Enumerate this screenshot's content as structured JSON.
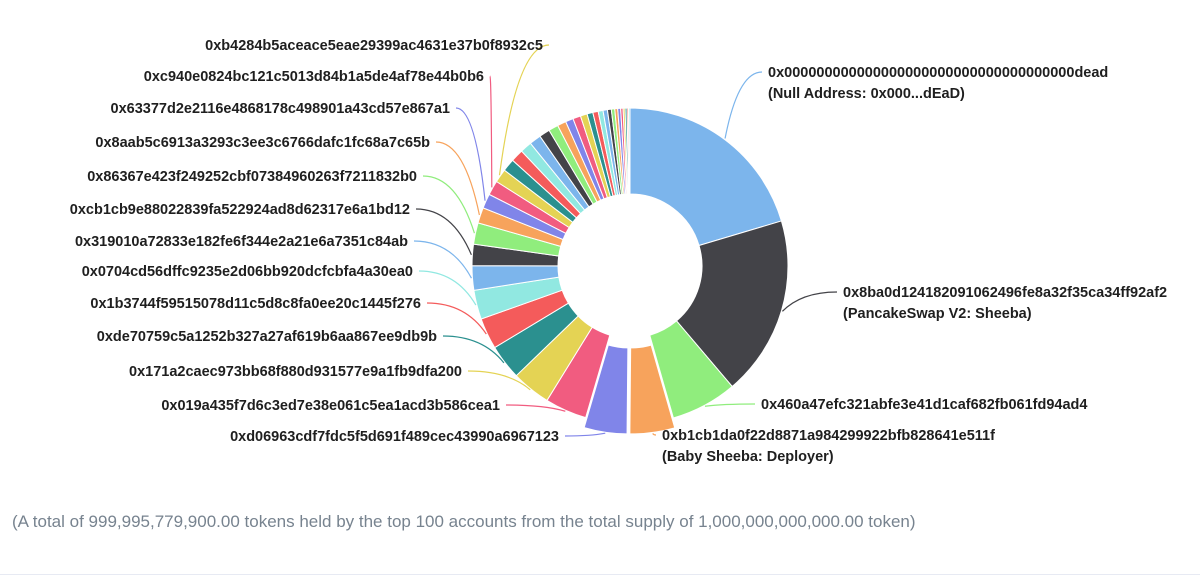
{
  "chart_data": {
    "type": "pie",
    "variant": "donut",
    "title": "",
    "legend": "none",
    "slices": [
      {
        "label": "0x000000000000000000000000000000000000dead",
        "sublabel": "(Null Address: 0x000...dEaD)",
        "value": 20.5,
        "color": "#7cb5ec"
      },
      {
        "label": "0x8ba0d124182091062496fe8a32f35ca34ff92af2",
        "sublabel": "(PancakeSwap V2: Sheeba)",
        "value": 18.5,
        "color": "#434348"
      },
      {
        "label": "0x460a47efc321abfe3e41d1caf682fb061fd94ad4",
        "value": 6.8,
        "color": "#90ed7d"
      },
      {
        "label": "0xb1cb1da0f22d8871a984299922bfb828641e511f",
        "sublabel": "(Baby Sheeba: Deployer)",
        "value": 4.6,
        "color": "#f7a35c",
        "sliced": true
      },
      {
        "label": "0xd06963cdf7fdc5f5d691f489cec43990a6967123",
        "value": 4.4,
        "color": "#8085e9",
        "sliced": true
      },
      {
        "label": "0x019a435f7d6c3ed7e38e061c5ea1acd3b586cea1",
        "value": 4.3,
        "color": "#f15c80"
      },
      {
        "label": "0x171a2caec973bb68f880d931577e9a1fb9dfa200",
        "value": 4.0,
        "color": "#e4d354"
      },
      {
        "label": "0xde70759c5a1252b327a27af619b6aa867ee9db9b",
        "value": 3.6,
        "color": "#2b908f"
      },
      {
        "label": "0x1b3744f59515078d11c5d8c8fa0ee20c1445f276",
        "value": 3.2,
        "color": "#f45b5b"
      },
      {
        "label": "0x0704cd56dffc9235e2d06bb920dcfcbfa4a30ea0",
        "value": 3.0,
        "color": "#91e8e1"
      },
      {
        "label": "0x319010a72833e182fe6f344e2a21e6a7351c84ab",
        "value": 2.5,
        "color": "#7cb5ec"
      },
      {
        "label": "0xcb1cb9e88022839fa522924ad8d62317e6a1bd12",
        "value": 2.2,
        "color": "#434348"
      },
      {
        "label": "0x86367e423f249252cbf07384960263f7211832b0",
        "value": 2.2,
        "color": "#90ed7d"
      },
      {
        "label": "0x8aab5c6913a3293c3ee3c6766dafc1fc68a7c65b",
        "value": 1.6,
        "color": "#f7a35c"
      },
      {
        "label": "0x63377d2e2116e4868178c498901a43cd57e867a1",
        "value": 1.5,
        "color": "#8085e9"
      },
      {
        "label": "0xc940e0824bc121c5013d84b1a5de4af78e44b0b6",
        "value": 1.5,
        "color": "#f15c80"
      },
      {
        "label": "0xb4284b5aceace5eae29399ac4631e37b0f8932c5",
        "value": 1.4,
        "color": "#e4d354"
      },
      {
        "value": 1.3,
        "color": "#2b908f"
      },
      {
        "value": 1.3,
        "color": "#f45b5b"
      },
      {
        "value": 1.2,
        "color": "#91e8e1"
      },
      {
        "value": 1.2,
        "color": "#7cb5ec"
      },
      {
        "value": 1.1,
        "color": "#434348"
      },
      {
        "value": 1.0,
        "color": "#90ed7d"
      },
      {
        "value": 0.9,
        "color": "#f7a35c"
      },
      {
        "value": 0.8,
        "color": "#8085e9"
      },
      {
        "value": 0.8,
        "color": "#f15c80"
      },
      {
        "value": 0.7,
        "color": "#e4d354"
      },
      {
        "value": 0.6,
        "color": "#2b908f"
      },
      {
        "value": 0.55,
        "color": "#f45b5b"
      },
      {
        "value": 0.5,
        "color": "#91e8e1"
      },
      {
        "value": 0.45,
        "color": "#7cb5ec"
      },
      {
        "value": 0.4,
        "color": "#434348"
      },
      {
        "value": 0.35,
        "color": "#90ed7d"
      },
      {
        "value": 0.3,
        "color": "#f7a35c"
      },
      {
        "value": 0.3,
        "color": "#8085e9"
      },
      {
        "value": 0.25,
        "color": "#f15c80"
      },
      {
        "value": 0.2,
        "color": "#e4d354"
      },
      {
        "value": 0.2,
        "color": "#2b908f"
      },
      {
        "value": 0.15,
        "color": "#f45b5b"
      },
      {
        "value": 0.15,
        "color": "#91e8e1"
      }
    ]
  },
  "summary": "(A total of 999,995,779,900.00 tokens held by the top 100 accounts from the total supply of 1,000,000,000,000.00 token)"
}
